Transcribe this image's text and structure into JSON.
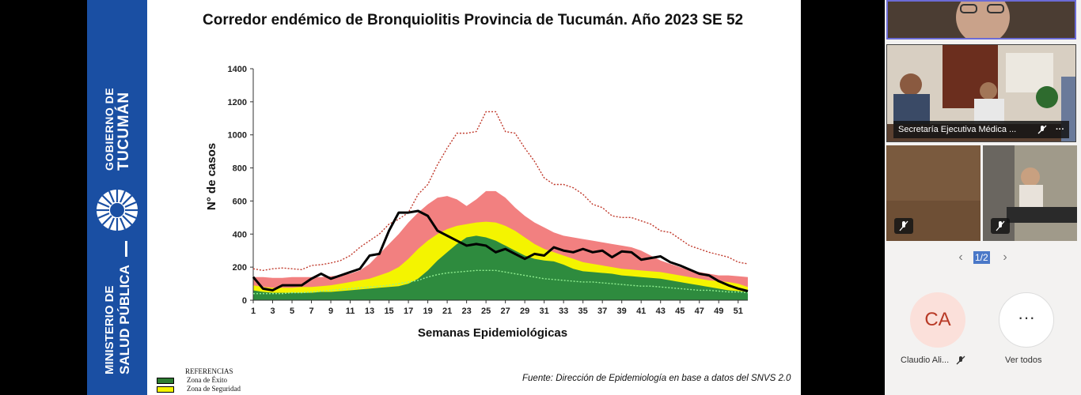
{
  "slide": {
    "title": "Corredor endémico de Bronquiolitis Provincia de Tucumán. Año 2023 SE 52",
    "source": "Fuente: Dirección de Epidemiología en base a datos del SNVS 2.0",
    "gov_line1": "GOBIERNO DE",
    "gov_line2": "TUCUMÁN",
    "ministry_line1": "MINISTERIO DE",
    "ministry_line2": "SALUD PÚBLICA",
    "references_title": "REFERENCIAS",
    "references": [
      {
        "label": "Zona de Éxito",
        "color": "#2e7d32"
      },
      {
        "label": "Zona de Seguridad",
        "color": "#f4f400"
      }
    ]
  },
  "chart_data": {
    "type": "area",
    "title": "Corredor endémico de Bronquiolitis Provincia de Tucumán. Año 2023 SE 52",
    "xlabel": "Semanas Epidemiológicas",
    "ylabel": "N° de casos",
    "ylim": [
      0,
      1400
    ],
    "yticks": [
      0,
      200,
      400,
      600,
      800,
      1000,
      1200,
      1400
    ],
    "xticks": [
      1,
      3,
      5,
      7,
      9,
      11,
      13,
      15,
      17,
      19,
      21,
      23,
      25,
      27,
      29,
      31,
      33,
      35,
      37,
      39,
      41,
      43,
      45,
      47,
      49,
      51
    ],
    "x": [
      1,
      2,
      3,
      4,
      5,
      6,
      7,
      8,
      9,
      10,
      11,
      12,
      13,
      14,
      15,
      16,
      17,
      18,
      19,
      20,
      21,
      22,
      23,
      24,
      25,
      26,
      27,
      28,
      29,
      30,
      31,
      32,
      33,
      34,
      35,
      36,
      37,
      38,
      39,
      40,
      41,
      42,
      43,
      44,
      45,
      46,
      47,
      48,
      49,
      50,
      51,
      52
    ],
    "colors": {
      "exito": "#2e8b3e",
      "seguridad": "#f4f400",
      "alerta": "#f28080",
      "brote_line": "#c0392b",
      "current_line": "#000000",
      "median_line": "#90ee90"
    },
    "series": [
      {
        "key": "exito",
        "values": [
          60,
          50,
          45,
          45,
          45,
          45,
          45,
          50,
          50,
          55,
          60,
          65,
          70,
          75,
          80,
          85,
          100,
          130,
          180,
          240,
          290,
          340,
          380,
          390,
          380,
          360,
          330,
          300,
          270,
          250,
          240,
          235,
          215,
          190,
          175,
          170,
          165,
          160,
          150,
          145,
          140,
          135,
          130,
          120,
          110,
          100,
          90,
          80,
          70,
          60,
          55,
          50
        ]
      },
      {
        "key": "seguridad",
        "values": [
          90,
          80,
          75,
          75,
          75,
          80,
          80,
          85,
          90,
          100,
          110,
          120,
          130,
          150,
          170,
          200,
          250,
          310,
          360,
          400,
          430,
          450,
          460,
          470,
          475,
          470,
          450,
          420,
          380,
          340,
          310,
          290,
          270,
          250,
          230,
          220,
          210,
          200,
          190,
          185,
          180,
          175,
          170,
          160,
          150,
          140,
          130,
          120,
          115,
          110,
          100,
          80
        ]
      },
      {
        "key": "alerta",
        "values": [
          140,
          140,
          135,
          135,
          140,
          140,
          140,
          140,
          145,
          150,
          160,
          180,
          220,
          280,
          340,
          400,
          470,
          530,
          580,
          620,
          630,
          610,
          570,
          610,
          660,
          660,
          620,
          560,
          510,
          470,
          440,
          410,
          390,
          380,
          370,
          360,
          350,
          340,
          330,
          320,
          300,
          270,
          240,
          220,
          200,
          180,
          170,
          160,
          150,
          150,
          145,
          140
        ]
      },
      {
        "key": "brote_line",
        "name": "",
        "values": [
          190,
          180,
          190,
          195,
          190,
          185,
          210,
          215,
          225,
          240,
          270,
          320,
          360,
          400,
          460,
          490,
          530,
          640,
          700,
          820,
          920,
          1010,
          1010,
          1020,
          1140,
          1140,
          1020,
          1010,
          920,
          840,
          740,
          700,
          700,
          680,
          640,
          580,
          560,
          510,
          500,
          500,
          480,
          460,
          420,
          410,
          370,
          330,
          310,
          290,
          275,
          260,
          230,
          220
        ]
      },
      {
        "key": "median_line",
        "name": "",
        "values": [
          40,
          40,
          40,
          40,
          45,
          45,
          50,
          55,
          60,
          65,
          70,
          75,
          80,
          85,
          90,
          100,
          110,
          120,
          140,
          155,
          165,
          170,
          175,
          180,
          180,
          180,
          170,
          160,
          150,
          140,
          130,
          125,
          120,
          115,
          110,
          110,
          105,
          100,
          95,
          90,
          85,
          85,
          80,
          75,
          70,
          65,
          60,
          60,
          55,
          50,
          50,
          45
        ]
      },
      {
        "key": "current_line",
        "name": "",
        "values": [
          140,
          70,
          60,
          90,
          90,
          90,
          130,
          160,
          130,
          150,
          170,
          190,
          270,
          280,
          420,
          530,
          530,
          540,
          510,
          420,
          390,
          360,
          330,
          340,
          330,
          290,
          310,
          280,
          250,
          280,
          270,
          320,
          300,
          290,
          310,
          290,
          300,
          260,
          295,
          290,
          245,
          255,
          265,
          230,
          210,
          185,
          160,
          150,
          115,
          90,
          70,
          55
        ]
      }
    ]
  },
  "sidebar": {
    "conf_label": "Secretaría Ejecutiva Médica ...",
    "page_indicator": "1/2",
    "avatar_initials": "CA",
    "avatar_name": "Claudio Ali...",
    "more_label": "Ver todos",
    "more_glyph": "···",
    "prev_glyph": "‹",
    "next_glyph": "›",
    "conf_menu_glyph": "···"
  }
}
